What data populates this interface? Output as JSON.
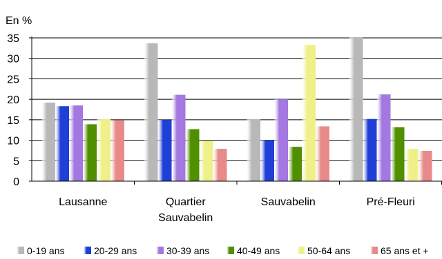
{
  "chart_data": {
    "type": "bar",
    "ylabel": "En %",
    "ylim": [
      0,
      35
    ],
    "yticks": [
      "0",
      "5",
      "10",
      "15",
      "20",
      "25",
      "30",
      "35"
    ],
    "grid": true,
    "legend_position": "bottom",
    "categories": [
      [
        "Lausanne"
      ],
      [
        "Quartier",
        "Sauvabelin"
      ],
      [
        "Sauvabelin"
      ],
      [
        "Pré-Fleuri"
      ]
    ],
    "series": [
      {
        "name": "0-19 ans",
        "color": "#b8b8b8",
        "values": [
          19.2,
          33.7,
          15.1,
          35.2
        ]
      },
      {
        "name": "20-29 ans",
        "color": "#1f3fd6",
        "values": [
          18.3,
          15.0,
          10.0,
          15.2
        ]
      },
      {
        "name": "30-39 ans",
        "color": "#a378e0",
        "values": [
          18.5,
          21.1,
          20.0,
          21.2
        ]
      },
      {
        "name": "40-49 ans",
        "color": "#4f8f00",
        "values": [
          13.9,
          12.7,
          8.4,
          13.2
        ]
      },
      {
        "name": "50-64 ans",
        "color": "#f0f08a",
        "values": [
          15.2,
          9.9,
          33.3,
          7.9
        ]
      },
      {
        "name": "65 ans et +",
        "color": "#e88a8a",
        "values": [
          14.9,
          7.9,
          13.4,
          7.4
        ]
      }
    ]
  }
}
